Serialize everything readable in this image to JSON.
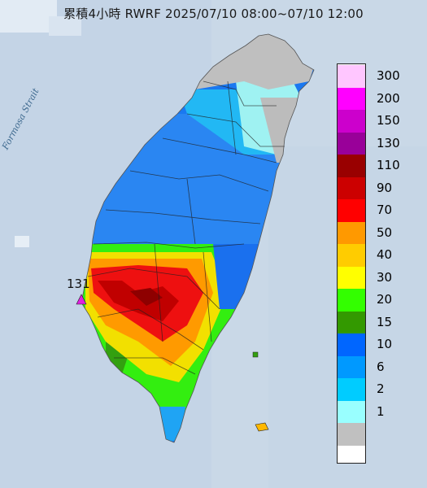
{
  "title": "累積4小時 RWRF 2025/07/10 08:00~07/10 12:00",
  "map": {
    "strait_label": "Formosa Strait",
    "max_station_value": "131",
    "max_marker_color": "#e020e0"
  },
  "legend": [
    {
      "label": "300",
      "color": "#ffc6ff"
    },
    {
      "label": "200",
      "color": "#ff00ff"
    },
    {
      "label": "150",
      "color": "#cc00cc"
    },
    {
      "label": "130",
      "color": "#990099"
    },
    {
      "label": "110",
      "color": "#990000"
    },
    {
      "label": "90",
      "color": "#cc0000"
    },
    {
      "label": "70",
      "color": "#ff0000"
    },
    {
      "label": "50",
      "color": "#ff9900"
    },
    {
      "label": "40",
      "color": "#ffcc00"
    },
    {
      "label": "30",
      "color": "#ffff00"
    },
    {
      "label": "20",
      "color": "#33ff00"
    },
    {
      "label": "15",
      "color": "#339900"
    },
    {
      "label": "10",
      "color": "#0066ff"
    },
    {
      "label": "6",
      "color": "#0099ff"
    },
    {
      "label": "2",
      "color": "#00ccff"
    },
    {
      "label": "1",
      "color": "#99ffff"
    },
    {
      "label": "",
      "color": "#c0c0c0"
    }
  ],
  "colors": {
    "sea": "#c7d6e6",
    "nodata": "#c0c0c0"
  }
}
